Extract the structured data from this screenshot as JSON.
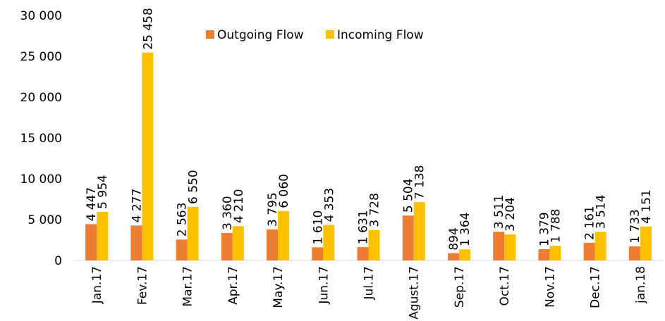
{
  "chart_data": {
    "type": "bar",
    "categories": [
      "Jan.17",
      "Fev.17",
      "Mar.17",
      "Apr.17",
      "May.17",
      "Jun.17",
      "Jul.17",
      "Agust.17",
      "Sep.17",
      "Oct.17",
      "Nov.17",
      "Dec.17",
      "jan.18"
    ],
    "series": [
      {
        "name": "Outgoing Flow",
        "color": "#ed7d31",
        "values": [
          4447,
          4277,
          2563,
          3360,
          3795,
          1610,
          1631,
          5504,
          894,
          3511,
          1379,
          2161,
          1733
        ],
        "value_labels": [
          "4 447",
          "4 277",
          "2 563",
          "3 360",
          "3 795",
          "1 610",
          "1 631",
          "5 504",
          "894",
          "3 511",
          "1 379",
          "2 161",
          "1 733"
        ]
      },
      {
        "name": "Incoming Flow",
        "color": "#ffc000",
        "values": [
          5954,
          25458,
          6550,
          4210,
          6060,
          4353,
          3728,
          7138,
          1364,
          3204,
          1788,
          3514,
          4151
        ],
        "value_labels": [
          "5 954",
          "25 458",
          "6 550",
          "4 210",
          "6 060",
          "4 353",
          "3 728",
          "7 138",
          "1 364",
          "3 204",
          "1 788",
          "3 514",
          "4 151"
        ]
      }
    ],
    "ylim": [
      0,
      30000
    ],
    "yticks": [
      0,
      {
        "value": 5000,
        "label": "5 000"
      },
      {
        "value": 10000,
        "label": "10 000"
      },
      {
        "value": 15000,
        "label": "15 000"
      },
      {
        "value": 20000,
        "label": "20 000"
      },
      {
        "value": 25000,
        "label": "25 000"
      },
      {
        "value": 30000,
        "label": "30 000"
      }
    ],
    "grid": false,
    "legend": "top"
  }
}
